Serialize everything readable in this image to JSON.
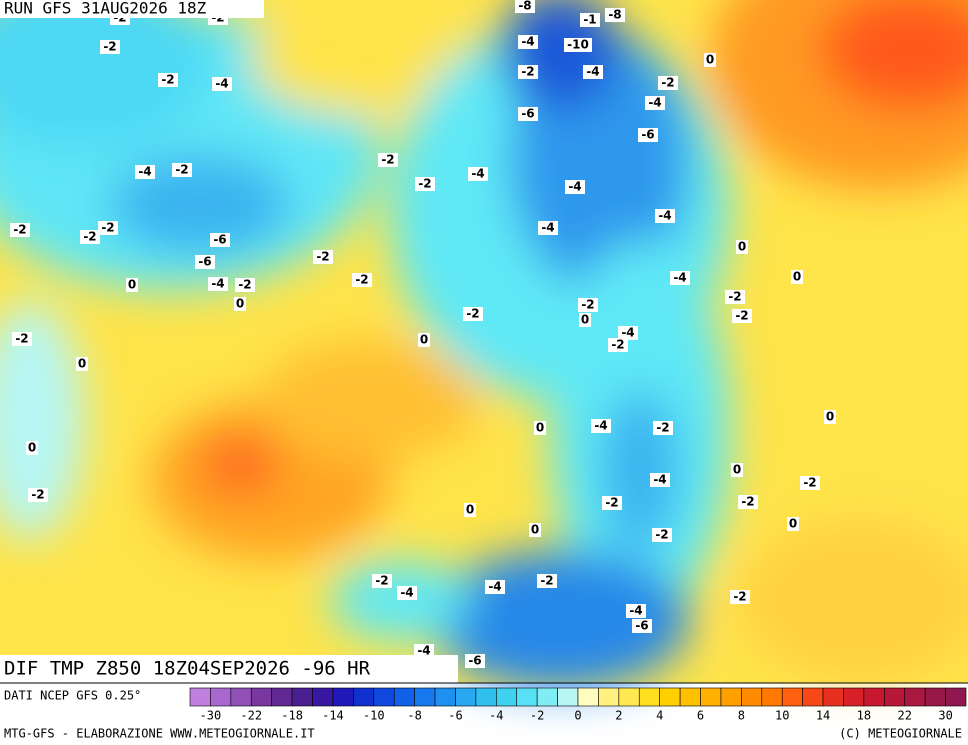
{
  "header": {
    "run": "RUN GFS 31AUG2026 18Z",
    "title": "DIF TMP Z850 18Z04SEP2026 -96 HR"
  },
  "map_labels": [
    -2,
    -2,
    -8,
    -1,
    -8,
    -4,
    -10,
    -2,
    0,
    -2,
    -4,
    -2,
    -4,
    -2,
    -4,
    -6,
    -6,
    -2,
    -4,
    -2,
    -2,
    -4,
    -4,
    -4,
    -2,
    -2,
    -2,
    -6,
    -4,
    0,
    -2,
    -6,
    0,
    -4,
    -2,
    -4,
    -2,
    0,
    -2,
    0,
    -2,
    -2,
    0,
    -2,
    -4,
    -2,
    -2,
    0,
    0,
    0,
    -4,
    -2,
    0,
    0,
    0,
    -4,
    -2,
    -2,
    -2,
    -2,
    0,
    0,
    0,
    -2,
    -2,
    -2,
    -4,
    -4,
    -2,
    -4,
    -6,
    -4,
    -6
  ],
  "footer": {
    "source": "DATI NCEP GFS 0.25°",
    "credit": "MTG-GFS - ELABORAZIONE WWW.METEOGIORNALE.IT",
    "copyright": "(C) METEOGIORNALE"
  },
  "colorbar": {
    "ticks": [
      -30,
      -22,
      -18,
      -14,
      -10,
      -8,
      -6,
      -4,
      -2,
      0,
      2,
      4,
      6,
      8,
      10,
      14,
      18,
      22,
      30
    ]
  }
}
